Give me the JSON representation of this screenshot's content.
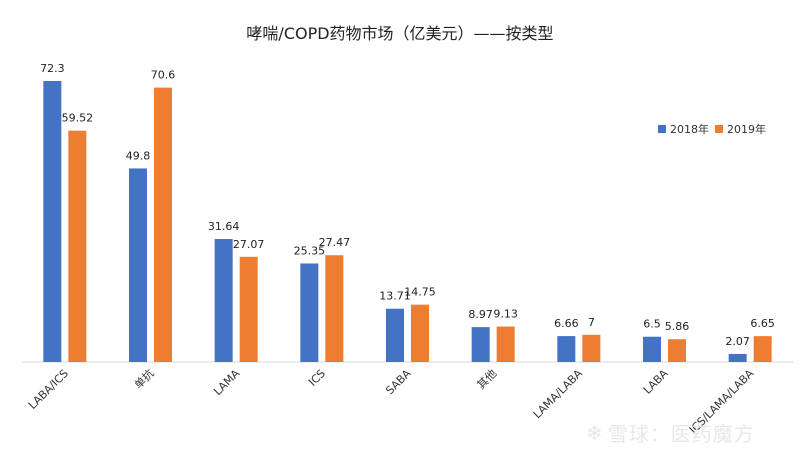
{
  "chart_data": {
    "type": "bar",
    "title": "哮喘/COPD药物市场（亿美元）——按类型",
    "categories": [
      "LABA/ICS",
      "单抗",
      "LAMA",
      "ICS",
      "SABA",
      "其他",
      "LAMA/LABA",
      "LABA",
      "ICS/LAMA/LABA"
    ],
    "series": [
      {
        "name": "2018年",
        "color": "#4472c4",
        "values": [
          72.3,
          49.8,
          31.64,
          25.35,
          13.71,
          8.97,
          6.66,
          6.5,
          2.07
        ]
      },
      {
        "name": "2019年",
        "color": "#ed7d31",
        "values": [
          59.52,
          70.6,
          27.07,
          27.47,
          14.75,
          9.13,
          7,
          5.86,
          6.65
        ]
      }
    ],
    "ylim": [
      0,
      72.3
    ],
    "grid": false,
    "legend_position": "right"
  },
  "watermark": {
    "icon": "snowball-logo-icon",
    "text": "雪球：医药魔方"
  }
}
